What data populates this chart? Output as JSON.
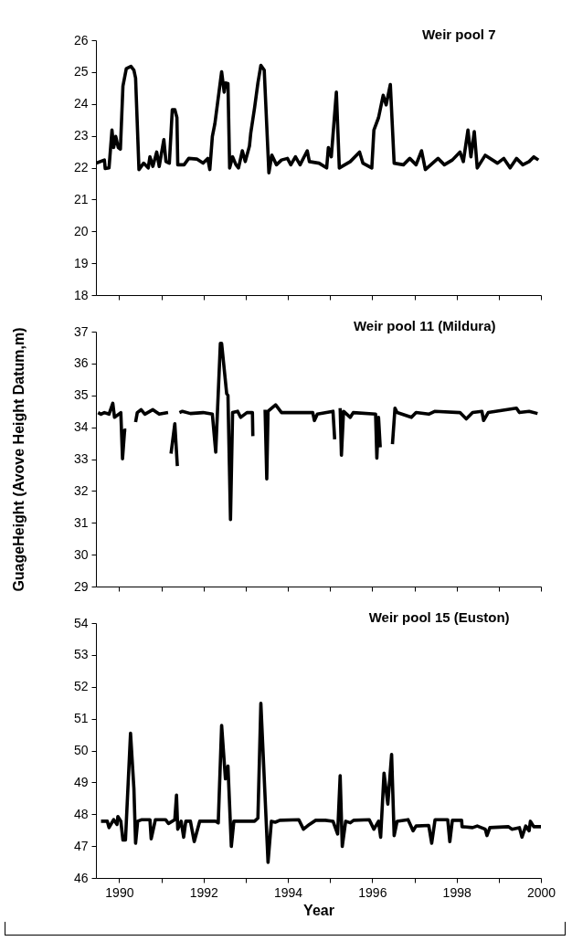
{
  "chart_data": [
    {
      "type": "line",
      "title": "Weir pool 7",
      "tick_labels": "y",
      "xlim": [
        1989.45,
        2000
      ],
      "ylim": [
        18,
        26
      ],
      "yticks": [
        18,
        19,
        20,
        21,
        22,
        23,
        24,
        25,
        26
      ],
      "xticks": [
        1990,
        {
          "value": 1991,
          "label": null
        },
        1992,
        {
          "value": 1993,
          "label": null
        },
        1994,
        {
          "value": 1995,
          "label": null
        },
        1996,
        {
          "value": 1997,
          "label": null
        },
        1998,
        {
          "value": 1999,
          "label": null
        },
        2000
      ],
      "x": [
        1989.46,
        1989.65,
        1989.67,
        1989.76,
        1989.83,
        1989.87,
        1989.92,
        1989.98,
        1990.03,
        1990.09,
        1990.17,
        1990.28,
        1990.35,
        1990.39,
        1990.47,
        1990.58,
        1990.69,
        1990.73,
        1990.8,
        1990.89,
        1990.95,
        1991.06,
        1991.11,
        1991.19,
        1991.26,
        1991.32,
        1991.37,
        1991.39,
        1991.54,
        1991.65,
        1991.84,
        1991.99,
        1992.1,
        1992.15,
        1992.21,
        1992.27,
        1992.43,
        1992.49,
        1992.52,
        1992.58,
        1992.62,
        1992.69,
        1992.77,
        1992.83,
        1992.92,
        1992.99,
        1993.09,
        1993.12,
        1993.21,
        1993.29,
        1993.36,
        1993.44,
        1993.55,
        1993.62,
        1993.73,
        1993.85,
        1993.99,
        1994.07,
        1994.18,
        1994.29,
        1994.46,
        1994.51,
        1994.74,
        1994.92,
        1994.96,
        1995.03,
        1995.15,
        1995.22,
        1995.48,
        1995.7,
        1995.78,
        1995.99,
        1996.04,
        1996.15,
        1996.26,
        1996.33,
        1996.43,
        1996.52,
        1996.74,
        1996.89,
        1997.04,
        1997.17,
        1997.26,
        1997.56,
        1997.71,
        1997.9,
        1998.08,
        1998.16,
        1998.27,
        1998.34,
        1998.42,
        1998.49,
        1998.68,
        1998.97,
        1999.12,
        1999.27,
        1999.42,
        1999.57,
        1999.72,
        1999.83,
        1999.94
      ],
      "series": [
        {
          "color": "#000000",
          "values": [
            22.14,
            22.24,
            21.97,
            21.99,
            23.18,
            22.63,
            22.98,
            22.63,
            22.58,
            24.56,
            25.11,
            25.18,
            25.06,
            24.81,
            21.94,
            22.14,
            21.99,
            22.34,
            22.04,
            22.49,
            22.04,
            22.88,
            22.19,
            22.14,
            23.82,
            23.82,
            23.57,
            22.09,
            22.09,
            22.29,
            22.27,
            22.14,
            22.29,
            21.94,
            22.98,
            23.38,
            25.01,
            24.37,
            24.66,
            24.64,
            21.99,
            22.34,
            22.09,
            21.99,
            22.53,
            22.19,
            22.68,
            23.08,
            23.87,
            24.66,
            25.21,
            25.06,
            21.84,
            22.39,
            22.09,
            22.24,
            22.29,
            22.09,
            22.34,
            22.09,
            22.53,
            22.19,
            22.14,
            21.99,
            22.63,
            22.34,
            24.37,
            21.99,
            22.19,
            22.49,
            22.14,
            21.99,
            23.18,
            23.57,
            24.27,
            23.97,
            24.61,
            22.14,
            22.09,
            22.29,
            22.09,
            22.53,
            21.94,
            22.29,
            22.09,
            22.24,
            22.49,
            22.19,
            23.18,
            22.34,
            23.13,
            21.99,
            22.39,
            22.14,
            22.29,
            21.99,
            22.29,
            22.09,
            22.19,
            22.34,
            22.24
          ]
        }
      ]
    },
    {
      "type": "line",
      "title": "Weir pool 11 (Mildura)",
      "ylabel": "GuageHeight (Avove Height Datum,m)",
      "tick_labels": "y",
      "xlim": [
        1989.45,
        2000
      ],
      "ylim": [
        29,
        37
      ],
      "yticks": [
        29,
        30,
        31,
        32,
        33,
        34,
        35,
        36,
        37
      ],
      "xticks": [
        1990,
        {
          "value": 1991,
          "label": null
        },
        1992,
        {
          "value": 1993,
          "label": null
        },
        1994,
        {
          "value": 1995,
          "label": null
        },
        1996,
        {
          "value": 1997,
          "label": null
        },
        1998,
        {
          "value": 1999,
          "label": null
        },
        2000
      ],
      "x": [
        1989.5,
        1989.57,
        1989.65,
        1989.76,
        1989.85,
        1989.89,
        1990.04,
        1990.08,
        1990.13,
        1990.17,
        1990.28,
        1990.39,
        1990.43,
        1990.52,
        1990.61,
        1990.8,
        1990.95,
        1991.16,
        1991.2,
        1991.23,
        1991.32,
        1991.38,
        1991.4,
        1991.43,
        1991.5,
        1991.69,
        1991.99,
        1992.21,
        1992.29,
        1992.4,
        1992.43,
        1992.55,
        1992.58,
        1992.64,
        1992.69,
        1992.81,
        1992.88,
        1993.03,
        1993.16,
        1993.17,
        1993.3,
        1993.46,
        1993.5,
        1993.53,
        1993.71,
        1993.85,
        1994.37,
        1994.59,
        1994.63,
        1994.7,
        1995.07,
        1995.11,
        1995.18,
        1995.24,
        1995.27,
        1995.32,
        1995.48,
        1995.55,
        1996.08,
        1996.11,
        1996.15,
        1996.19,
        1996.3,
        1996.48,
        1996.54,
        1996.59,
        1996.93,
        1997.04,
        1997.34,
        1997.49,
        1998.08,
        1998.23,
        1998.38,
        1998.6,
        1998.64,
        1998.75,
        1999.42,
        1999.49,
        1999.72,
        1999.92
      ],
      "series": [
        {
          "color": "#000000",
          "values": [
            34.46,
            34.41,
            34.46,
            34.41,
            34.75,
            34.31,
            34.46,
            33.01,
            33.91,
            33.91,
            null,
            34.16,
            34.46,
            34.55,
            34.41,
            34.55,
            34.41,
            34.46,
            null,
            33.17,
            34.11,
            32.78,
            null,
            34.46,
            34.5,
            34.43,
            34.46,
            34.41,
            33.22,
            36.63,
            36.63,
            35.05,
            35.0,
            31.1,
            34.46,
            34.5,
            34.31,
            34.46,
            34.46,
            33.72,
            null,
            34.55,
            32.38,
            34.5,
            34.7,
            34.46,
            34.46,
            34.46,
            34.21,
            34.41,
            34.5,
            33.62,
            null,
            34.6,
            33.12,
            34.5,
            34.31,
            34.46,
            34.41,
            33.03,
            34.31,
            33.37,
            null,
            33.47,
            34.6,
            34.46,
            34.31,
            34.46,
            34.41,
            34.5,
            34.46,
            34.26,
            34.46,
            34.5,
            34.21,
            34.46,
            34.6,
            34.46,
            34.5,
            34.43
          ]
        }
      ]
    },
    {
      "type": "line",
      "title": "Weir pool 15 (Euston)",
      "xlabel": "Year",
      "xlim": [
        1989.45,
        2000
      ],
      "ylim": [
        46,
        54
      ],
      "yticks": [
        46,
        47,
        48,
        49,
        50,
        51,
        52,
        53,
        54
      ],
      "xticks": [
        1990,
        {
          "value": 1991,
          "label": null
        },
        1992,
        {
          "value": 1993,
          "label": null
        },
        1994,
        {
          "value": 1995,
          "label": null
        },
        1996,
        {
          "value": 1997,
          "label": null
        },
        1998,
        {
          "value": 1999,
          "label": null
        },
        2000
      ],
      "x": [
        1989.57,
        1989.72,
        1989.76,
        1989.87,
        1989.95,
        1989.97,
        1990.04,
        1990.09,
        1990.15,
        1990.27,
        1990.35,
        1990.39,
        1990.44,
        1990.54,
        1990.73,
        1990.76,
        1990.86,
        1991.1,
        1991.17,
        1991.32,
        1991.36,
        1991.39,
        1991.47,
        1991.53,
        1991.58,
        1991.69,
        1991.78,
        1991.91,
        1992.29,
        1992.35,
        1992.43,
        1992.52,
        1992.58,
        1992.66,
        1992.72,
        1993.21,
        1993.29,
        1993.36,
        1993.53,
        1993.61,
        1993.7,
        1993.81,
        1994.26,
        1994.37,
        1994.51,
        1994.66,
        1994.89,
        1995.07,
        1995.18,
        1995.24,
        1995.29,
        1995.37,
        1995.48,
        1995.56,
        1995.93,
        1996.04,
        1996.15,
        1996.2,
        1996.28,
        1996.37,
        1996.46,
        1996.52,
        1996.59,
        1996.85,
        1996.97,
        1997.04,
        1997.34,
        1997.41,
        1997.49,
        1997.79,
        1997.84,
        1997.9,
        1998.12,
        1998.13,
        1998.38,
        1998.49,
        1998.68,
        1998.72,
        1998.79,
        1999.23,
        1999.31,
        1999.49,
        1999.55,
        1999.64,
        1999.72,
        1999.75,
        1999.83,
        2000
      ],
      "series": [
        {
          "color": "#000000",
          "values": [
            47.78,
            47.78,
            47.58,
            47.83,
            47.68,
            47.93,
            47.78,
            47.19,
            47.19,
            50.54,
            48.81,
            47.09,
            47.78,
            47.83,
            47.83,
            47.23,
            47.83,
            47.83,
            47.71,
            47.83,
            48.6,
            47.53,
            47.78,
            47.28,
            47.78,
            47.78,
            47.14,
            47.78,
            47.78,
            47.73,
            50.79,
            49.11,
            49.51,
            46.99,
            47.78,
            47.78,
            47.88,
            51.48,
            46.49,
            47.78,
            47.75,
            47.81,
            47.83,
            47.53,
            47.68,
            47.81,
            47.81,
            47.78,
            47.38,
            49.21,
            46.99,
            47.78,
            47.73,
            47.81,
            47.83,
            47.53,
            47.78,
            47.28,
            49.29,
            48.32,
            49.88,
            47.33,
            47.78,
            47.83,
            47.48,
            47.63,
            47.65,
            47.09,
            47.83,
            47.83,
            47.14,
            47.81,
            47.81,
            47.61,
            47.58,
            47.63,
            47.53,
            47.33,
            47.58,
            47.61,
            47.53,
            47.58,
            47.28,
            47.63,
            47.48,
            47.78,
            47.61,
            47.61
          ]
        }
      ]
    }
  ]
}
